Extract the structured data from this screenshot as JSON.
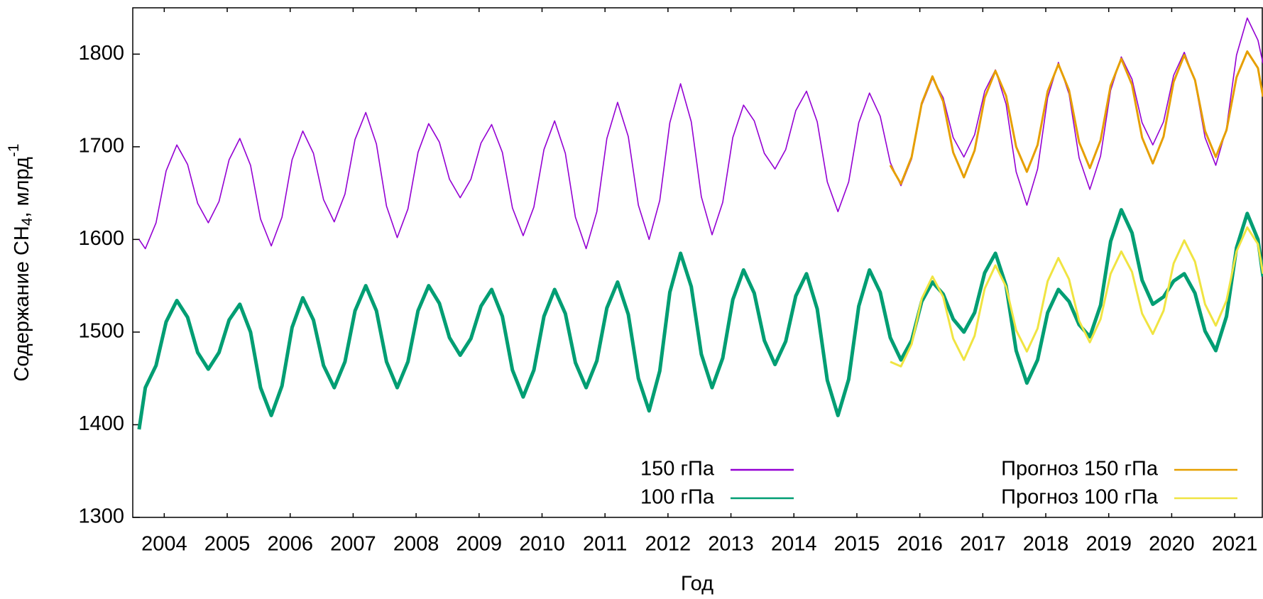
{
  "chart_data": {
    "type": "line",
    "xlabel": "Год",
    "ylabel": [
      "Содержание CH",
      "4",
      ", млрд",
      "-1"
    ],
    "x": [
      2004.1,
      2004.2,
      2004.37,
      2004.53,
      2004.7,
      2004.87,
      2005.03,
      2005.2,
      2005.37,
      2005.53,
      2005.7,
      2005.87,
      2006.03,
      2006.2,
      2006.37,
      2006.53,
      2006.7,
      2006.87,
      2007.03,
      2007.2,
      2007.37,
      2007.53,
      2007.7,
      2007.87,
      2008.03,
      2008.2,
      2008.37,
      2008.53,
      2008.7,
      2008.87,
      2009.03,
      2009.2,
      2009.37,
      2009.53,
      2009.7,
      2009.87,
      2010.03,
      2010.2,
      2010.37,
      2010.53,
      2010.7,
      2010.87,
      2011.03,
      2011.2,
      2011.37,
      2011.53,
      2011.7,
      2011.87,
      2012.03,
      2012.2,
      2012.37,
      2012.53,
      2012.7,
      2012.87,
      2013.03,
      2013.2,
      2013.37,
      2013.53,
      2013.7,
      2013.87,
      2014.03,
      2014.2,
      2014.37,
      2014.53,
      2014.7,
      2014.87,
      2015.03,
      2015.2,
      2015.37,
      2015.53,
      2015.7,
      2015.87,
      2016.03,
      2016.2,
      2016.37,
      2016.53,
      2016.7,
      2016.87,
      2017.03,
      2017.2,
      2017.37,
      2017.53,
      2017.7,
      2017.87,
      2018.03,
      2018.2,
      2018.37,
      2018.53,
      2018.7,
      2018.87,
      2019.03,
      2019.2,
      2019.37,
      2019.53,
      2019.7,
      2019.87,
      2020.03,
      2020.2,
      2020.37,
      2020.53,
      2020.7,
      2020.87,
      2021.03,
      2021.2,
      2021.37,
      2021.53,
      2021.7,
      2021.87,
      2021.95
    ],
    "series": [
      {
        "name": "150 гПа",
        "color": "#9400d3",
        "values": [
          1600,
          1590,
          1618,
          1674,
          1702,
          1681,
          1639,
          1618,
          1641,
          1686,
          1709,
          1680,
          1622,
          1593,
          1624,
          1686,
          1717,
          1693,
          1643,
          1619,
          1649,
          1708,
          1737,
          1703,
          1636,
          1602,
          1633,
          1694,
          1725,
          1705,
          1665,
          1645,
          1665,
          1704,
          1724,
          1694,
          1634,
          1604,
          1635,
          1697,
          1728,
          1693,
          1624,
          1590,
          1630,
          1709,
          1748,
          1711,
          1637,
          1600,
          1642,
          1726,
          1768,
          1727,
          1646,
          1605,
          1640,
          1710,
          1745,
          1728,
          1693,
          1676,
          1697,
          1739,
          1760,
          1727,
          1662,
          1630,
          1662,
          1726,
          1758,
          1733,
          1683,
          1658,
          1687,
          1745,
          1774,
          1753,
          1710,
          1689,
          1713,
          1760,
          1783,
          1746,
          1673,
          1637,
          1676,
          1753,
          1791,
          1757,
          1688,
          1654,
          1690,
          1761,
          1797,
          1773,
          1726,
          1702,
          1727,
          1777,
          1802,
          1771,
          1710,
          1680,
          1720,
          1799,
          1839,
          1815,
          1790
        ]
      },
      {
        "name": "100 гПа",
        "color": "#009e73",
        "values": [
          1395,
          1440,
          1464,
          1511,
          1534,
          1516,
          1478,
          1460,
          1478,
          1513,
          1530,
          1500,
          1440,
          1410,
          1442,
          1505,
          1537,
          1513,
          1464,
          1440,
          1468,
          1523,
          1550,
          1523,
          1468,
          1440,
          1468,
          1523,
          1550,
          1531,
          1494,
          1475,
          1493,
          1528,
          1546,
          1517,
          1459,
          1430,
          1459,
          1517,
          1546,
          1520,
          1467,
          1440,
          1469,
          1526,
          1554,
          1519,
          1450,
          1415,
          1458,
          1543,
          1585,
          1549,
          1476,
          1440,
          1472,
          1535,
          1567,
          1542,
          1491,
          1465,
          1490,
          1539,
          1563,
          1525,
          1448,
          1410,
          1449,
          1528,
          1567,
          1543,
          1494,
          1470,
          1491,
          1533,
          1554,
          1541,
          1514,
          1500,
          1521,
          1564,
          1585,
          1550,
          1480,
          1445,
          1470,
          1521,
          1546,
          1533,
          1508,
          1495,
          1529,
          1598,
          1632,
          1607,
          1556,
          1530,
          1538,
          1555,
          1563,
          1542,
          1501,
          1480,
          1517,
          1591,
          1628,
          1600,
          1560
        ]
      },
      {
        "name": "Прогноз 150 гПа",
        "color": "#e69f00",
        "values": [
          null,
          null,
          null,
          null,
          null,
          null,
          null,
          null,
          null,
          null,
          null,
          null,
          null,
          null,
          null,
          null,
          null,
          null,
          null,
          null,
          null,
          null,
          null,
          null,
          null,
          null,
          null,
          null,
          null,
          null,
          null,
          null,
          null,
          null,
          null,
          null,
          null,
          null,
          null,
          null,
          null,
          null,
          null,
          null,
          null,
          null,
          null,
          null,
          null,
          null,
          null,
          null,
          null,
          null,
          null,
          null,
          null,
          null,
          null,
          null,
          null,
          null,
          null,
          null,
          null,
          null,
          null,
          null,
          null,
          null,
          null,
          null,
          1680,
          1660,
          1689,
          1747,
          1776,
          1749,
          1694,
          1667,
          1696,
          1753,
          1782,
          1755,
          1700,
          1673,
          1702,
          1760,
          1789,
          1761,
          1705,
          1677,
          1707,
          1766,
          1795,
          1767,
          1710,
          1682,
          1711,
          1770,
          1799,
          1772,
          1717,
          1689,
          1718,
          1775,
          1803,
          1785,
          1754
        ]
      },
      {
        "name": "Прогноз 100 гПа",
        "color": "#f0e442",
        "values": [
          null,
          null,
          null,
          null,
          null,
          null,
          null,
          null,
          null,
          null,
          null,
          null,
          null,
          null,
          null,
          null,
          null,
          null,
          null,
          null,
          null,
          null,
          null,
          null,
          null,
          null,
          null,
          null,
          null,
          null,
          null,
          null,
          null,
          null,
          null,
          null,
          null,
          null,
          null,
          null,
          null,
          null,
          null,
          null,
          null,
          null,
          null,
          null,
          null,
          null,
          null,
          null,
          null,
          null,
          null,
          null,
          null,
          null,
          null,
          null,
          null,
          null,
          null,
          null,
          null,
          null,
          null,
          null,
          null,
          null,
          null,
          null,
          1468,
          1463,
          1487,
          1536,
          1560,
          1538,
          1493,
          1470,
          1496,
          1547,
          1572,
          1549,
          1502,
          1479,
          1504,
          1555,
          1580,
          1557,
          1512,
          1489,
          1514,
          1563,
          1587,
          1565,
          1520,
          1498,
          1523,
          1574,
          1599,
          1576,
          1530,
          1507,
          1534,
          1587,
          1613,
          1595,
          1563
        ]
      }
    ],
    "xlim": [
      2004,
      2021.95
    ],
    "xticks": [
      {
        "value": 2004.5,
        "label": "2004"
      },
      {
        "value": 2005.5,
        "label": "2005"
      },
      {
        "value": 2006.5,
        "label": "2006"
      },
      {
        "value": 2007.5,
        "label": "2007"
      },
      {
        "value": 2008.5,
        "label": "2008"
      },
      {
        "value": 2009.5,
        "label": "2009"
      },
      {
        "value": 2010.5,
        "label": "2010"
      },
      {
        "value": 2011.5,
        "label": "2011"
      },
      {
        "value": 2012.5,
        "label": "2012"
      },
      {
        "value": 2013.5,
        "label": "2013"
      },
      {
        "value": 2014.5,
        "label": "2014"
      },
      {
        "value": 2015.5,
        "label": "2015"
      },
      {
        "value": 2016.5,
        "label": "2016"
      },
      {
        "value": 2017.5,
        "label": "2017"
      },
      {
        "value": 2018.5,
        "label": "2018"
      },
      {
        "value": 2019.5,
        "label": "2019"
      },
      {
        "value": 2020.5,
        "label": "2020"
      },
      {
        "value": 2021.5,
        "label": "2021"
      }
    ],
    "ylim": [
      1300,
      1850
    ],
    "yticks": [
      1300,
      1400,
      1500,
      1600,
      1700,
      1800
    ],
    "grid": false,
    "legend": "bottom"
  }
}
